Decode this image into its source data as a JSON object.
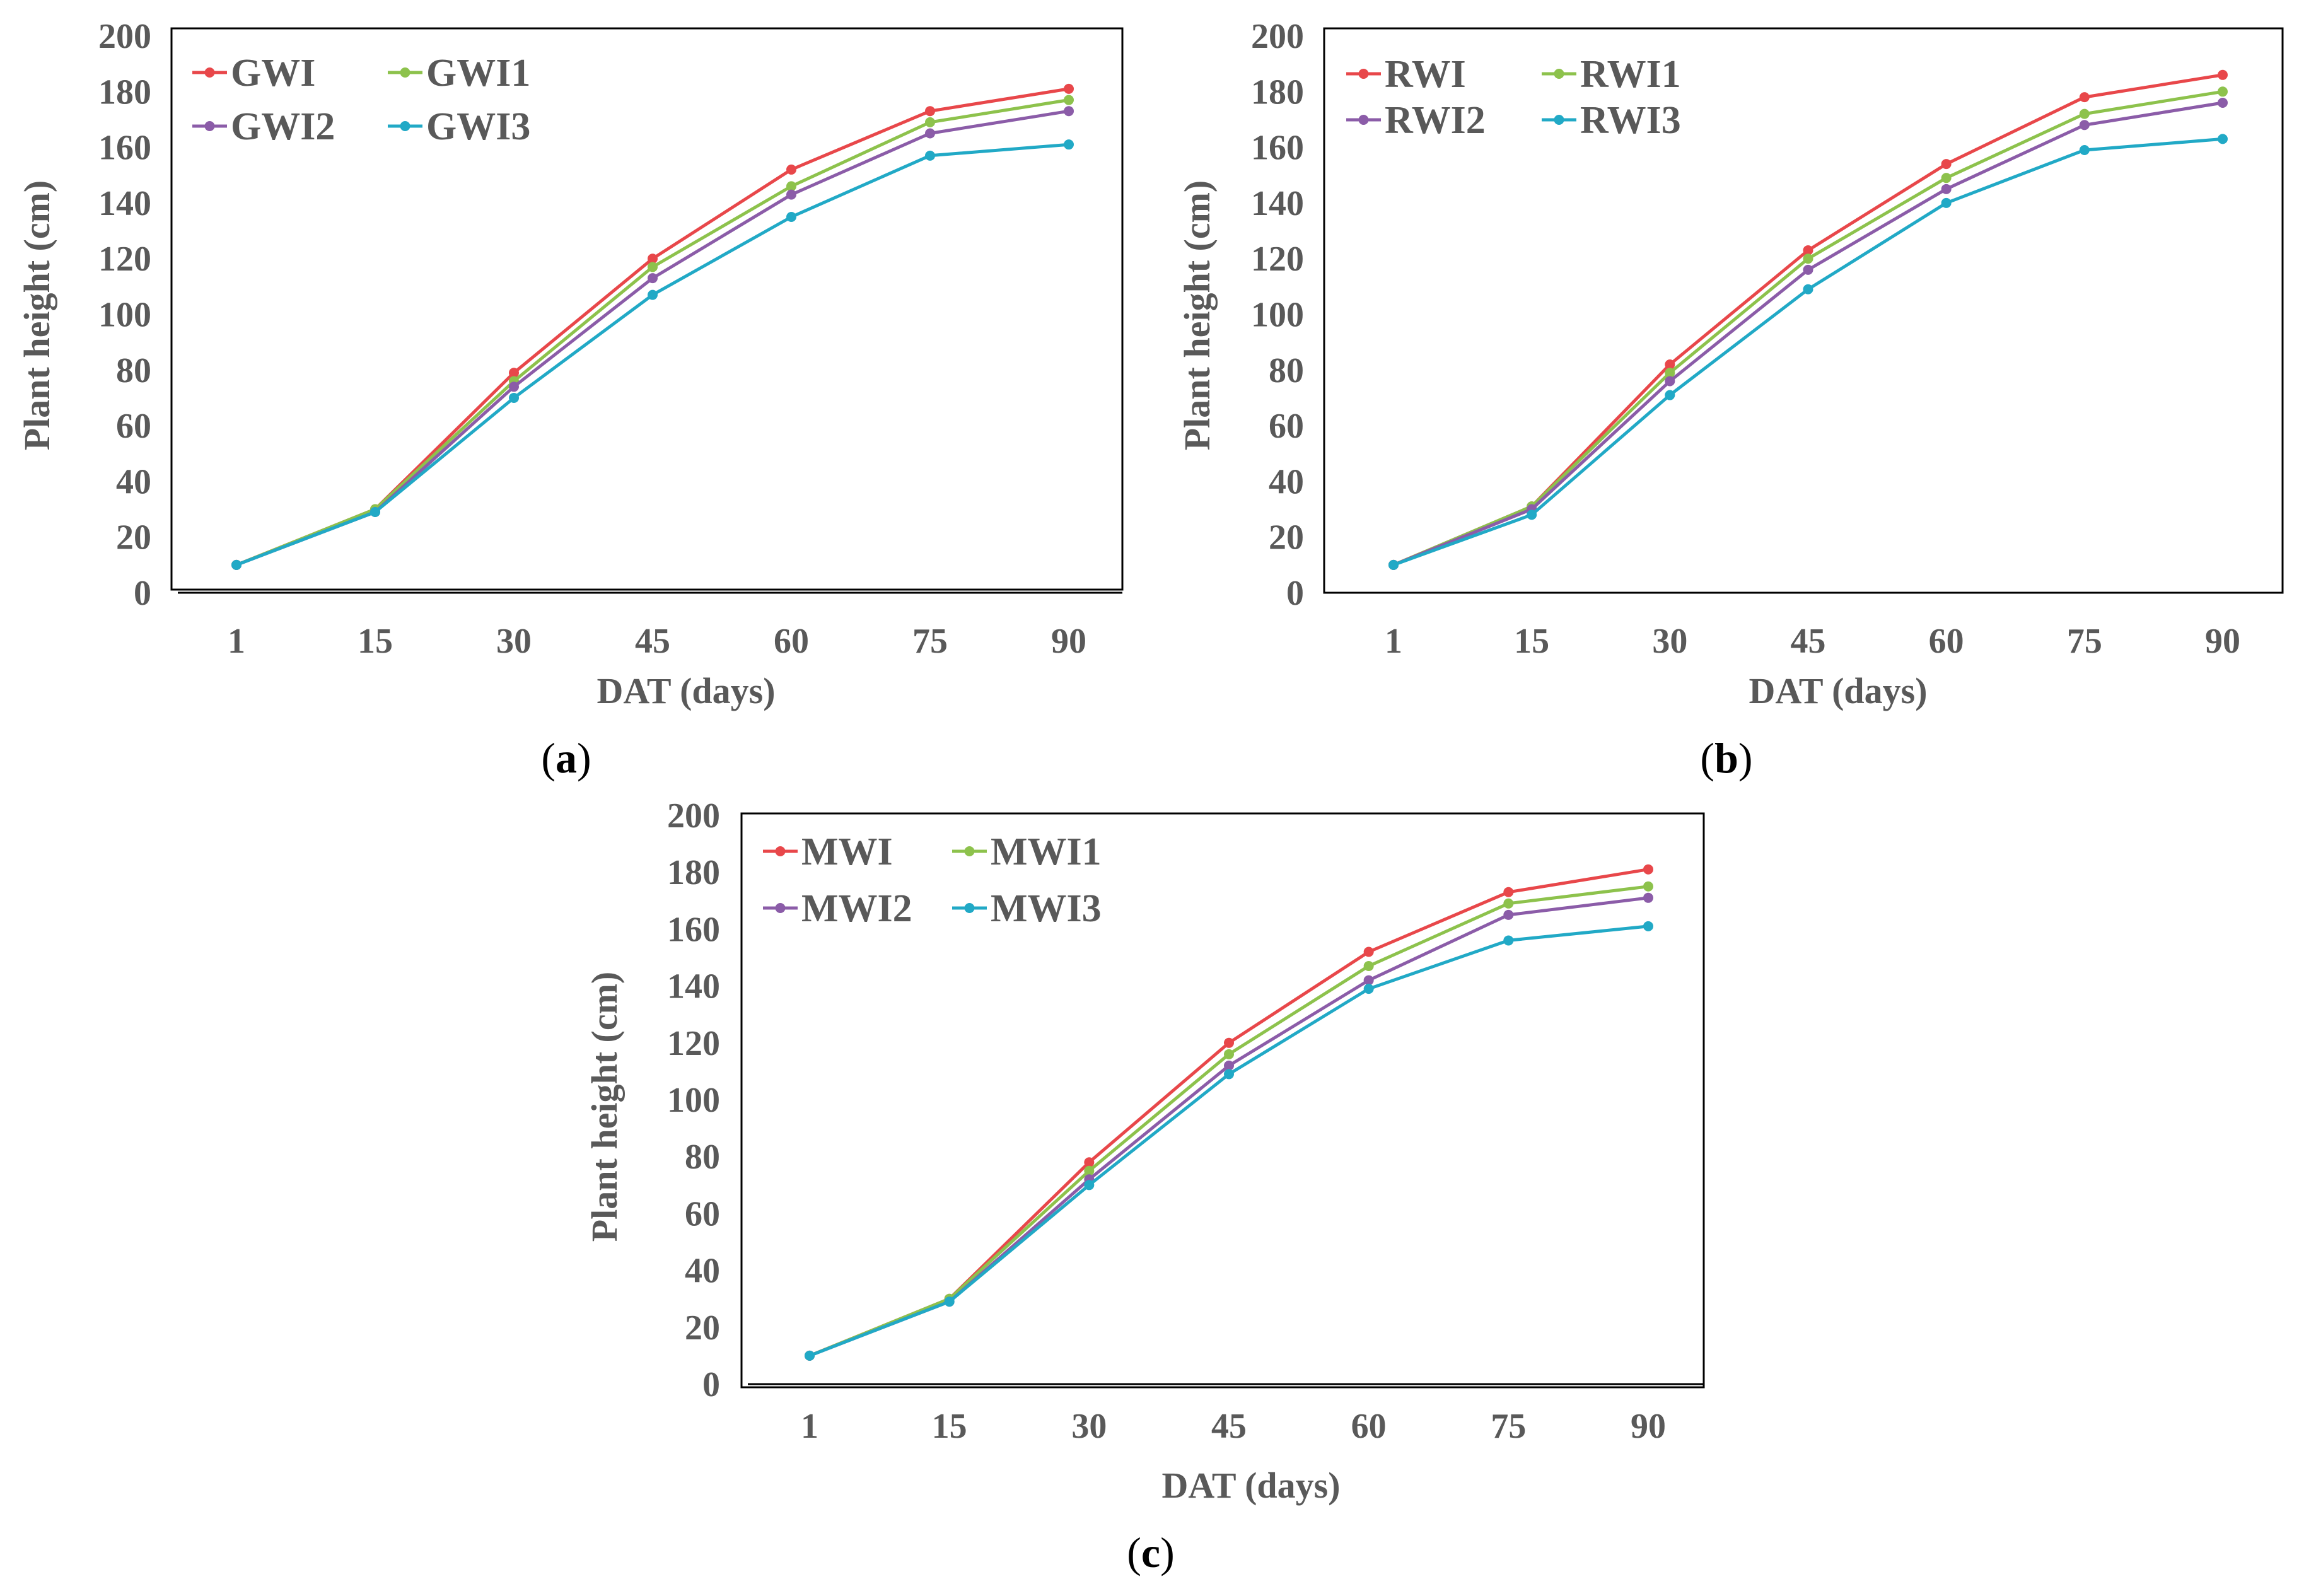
{
  "chart_data": [
    {
      "type": "line",
      "caption": "a",
      "categories": [
        "1",
        "15",
        "30",
        "45",
        "60",
        "75",
        "90"
      ],
      "xlabel": "DAT (days)",
      "ylabel": "Plant height (cm)",
      "ylim": [
        0,
        200
      ],
      "yticks": [
        0,
        20,
        40,
        60,
        80,
        100,
        120,
        140,
        160,
        180,
        200
      ],
      "legend_position": "top-left",
      "series": [
        {
          "name": "GWI",
          "color": "#e8474a",
          "values": [
            10,
            30,
            79,
            120,
            152,
            173,
            181
          ]
        },
        {
          "name": "GWI1",
          "color": "#8dc24c",
          "values": [
            10,
            30,
            76,
            117,
            146,
            169,
            177
          ]
        },
        {
          "name": "GWI2",
          "color": "#8b5ca8",
          "values": [
            10,
            29,
            74,
            113,
            143,
            165,
            173
          ]
        },
        {
          "name": "GWI3",
          "color": "#21a9c6",
          "values": [
            10,
            29,
            70,
            107,
            135,
            157,
            161
          ]
        }
      ]
    },
    {
      "type": "line",
      "caption": "b",
      "categories": [
        "1",
        "15",
        "30",
        "45",
        "60",
        "75",
        "90"
      ],
      "xlabel": "DAT (days)",
      "ylabel": "Plant height (cm)",
      "ylim": [
        0,
        200
      ],
      "yticks": [
        0,
        20,
        40,
        60,
        80,
        100,
        120,
        140,
        160,
        180,
        200
      ],
      "legend_position": "top-left",
      "series": [
        {
          "name": "RWI",
          "color": "#e8474a",
          "values": [
            10,
            31,
            82,
            123,
            154,
            178,
            186
          ]
        },
        {
          "name": "RWI1",
          "color": "#8dc24c",
          "values": [
            10,
            31,
            79,
            120,
            149,
            172,
            180
          ]
        },
        {
          "name": "RWI2",
          "color": "#8b5ca8",
          "values": [
            10,
            30,
            76,
            116,
            145,
            168,
            176
          ]
        },
        {
          "name": "RWI3",
          "color": "#21a9c6",
          "values": [
            10,
            28,
            71,
            109,
            140,
            159,
            163
          ]
        }
      ]
    },
    {
      "type": "line",
      "caption": "c",
      "categories": [
        "1",
        "15",
        "30",
        "45",
        "60",
        "75",
        "90"
      ],
      "xlabel": "DAT (days)",
      "ylabel": "Plant height (cm)",
      "ylim": [
        0,
        200
      ],
      "yticks": [
        0,
        20,
        40,
        60,
        80,
        100,
        120,
        140,
        160,
        180,
        200
      ],
      "legend_position": "top-left",
      "series": [
        {
          "name": "MWI",
          "color": "#e8474a",
          "values": [
            10,
            30,
            78,
            120,
            152,
            173,
            181
          ]
        },
        {
          "name": "MWI1",
          "color": "#8dc24c",
          "values": [
            10,
            30,
            75,
            116,
            147,
            169,
            175
          ]
        },
        {
          "name": "MWI2",
          "color": "#8b5ca8",
          "values": [
            10,
            29,
            72,
            112,
            142,
            165,
            171
          ]
        },
        {
          "name": "MWI3",
          "color": "#21a9c6",
          "values": [
            10,
            29,
            70,
            109,
            139,
            156,
            161
          ]
        }
      ]
    }
  ]
}
